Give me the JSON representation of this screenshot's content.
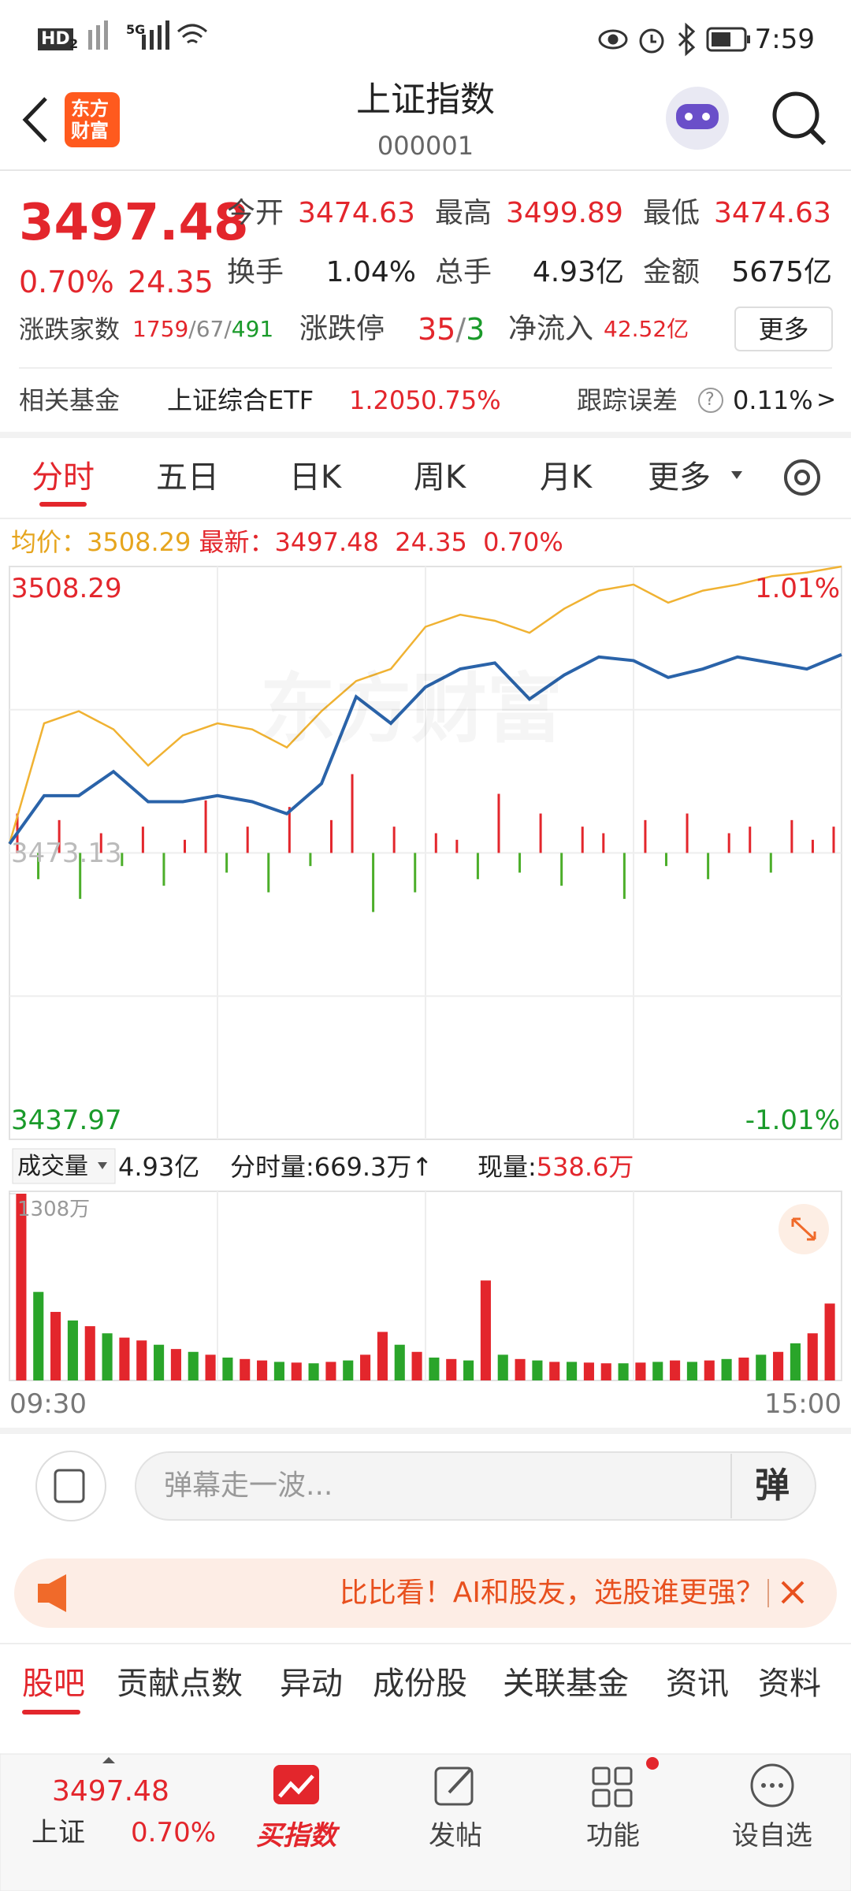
{
  "status_bar": {
    "hd": "HD",
    "hd_sub": "2",
    "network": "5G",
    "time": "7:59"
  },
  "header": {
    "title": "上证指数",
    "code": "000001",
    "logo": [
      "东方",
      "财富"
    ]
  },
  "quote": {
    "price": "3497.48",
    "change_pct": "0.70%",
    "change": "24.35",
    "row1": [
      {
        "label": "今开",
        "value": "3474.63"
      },
      {
        "label": "最高",
        "value": "3499.89"
      },
      {
        "label": "最低",
        "value": "3474.63"
      }
    ],
    "row2": [
      {
        "label": "换手",
        "value": "1.04%"
      },
      {
        "label": "总手",
        "value": "4.93亿"
      },
      {
        "label": "金额",
        "value": "5675亿"
      }
    ],
    "breadth_label": "涨跌家数",
    "advance": "1759",
    "flat": "67",
    "decline": "491",
    "sep": "/",
    "limit_label": "涨跌停",
    "limit_up": "35",
    "limit_down": "3",
    "inflow_label": "净流入",
    "inflow": "42.52亿",
    "more": "更多"
  },
  "fund": {
    "label": "相关基金",
    "name": "上证综合ETF",
    "price": "1.205",
    "pct": "0.75%",
    "tracking_label": "跟踪误差",
    "help": "?",
    "tracking": "0.11%",
    "arrow": ">"
  },
  "tabs": [
    "分时",
    "五日",
    "日K",
    "周K",
    "月K",
    "更多"
  ],
  "info": {
    "avg_label": "均价：",
    "avg": "3508.29",
    "last_label": "最新：",
    "last": "3497.48",
    "change": "24.35",
    "pct": "0.70%"
  },
  "chart": {
    "watermark": "东方财富",
    "ylim": [
      3437.97,
      3508.29
    ],
    "yticks": [
      3437.97,
      3473.13,
      3508.29
    ],
    "y2lim": [
      -1.01,
      1.01
    ],
    "y2ticks": [
      {
        "value": -1.01,
        "label": "-1.01%"
      },
      {
        "value": 1.01,
        "label": "1.01%"
      }
    ],
    "price": {
      "color": "#2a63a9",
      "values": [
        3474.24,
        3480.16,
        3480.16,
        3483.12,
        3479.42,
        3479.42,
        3480.16,
        3479.42,
        3477.94,
        3481.64,
        3492.3,
        3489.04,
        3493.49,
        3495.71,
        3496.45,
        3492.01,
        3494.97,
        3497.19,
        3496.74,
        3494.67,
        3495.71,
        3497.19,
        3496.45,
        3495.71,
        3497.48
      ]
    },
    "average": {
      "color": "#f0b232",
      "values": [
        3474.24,
        3489.04,
        3490.53,
        3488.3,
        3483.86,
        3487.56,
        3489.04,
        3488.3,
        3486.08,
        3490.53,
        3494.23,
        3495.71,
        3500.89,
        3502.37,
        3501.63,
        3500.15,
        3503.11,
        3505.33,
        3506.07,
        3503.85,
        3505.33,
        3506.07,
        3507.11,
        3507.55,
        3508.29
      ]
    },
    "breadth": [
      30,
      -20,
      25,
      -35,
      15,
      -10,
      20,
      -25,
      10,
      40,
      -15,
      20,
      -30,
      35,
      -10,
      25,
      60,
      -45,
      20,
      -30,
      15,
      10,
      -20,
      45,
      -15,
      30,
      -25,
      20,
      15,
      -35,
      25,
      -10,
      30,
      -20,
      15,
      20,
      -15,
      25,
      10,
      20
    ]
  },
  "volume_header": {
    "selector": "成交量",
    "total": "4.93亿",
    "seg_label": "分时量:",
    "seg": "669.3万",
    "arrow": "↑",
    "now_label": "现量:",
    "now": "538.6万"
  },
  "volume": {
    "ylim": [
      0,
      1308
    ],
    "yticks": [
      {
        "value": 1308,
        "label": "1308万"
      }
    ],
    "x_labels": [
      "09:30",
      "15:00"
    ],
    "values": [
      1308,
      620,
      480,
      420,
      380,
      330,
      300,
      280,
      250,
      220,
      200,
      180,
      160,
      150,
      140,
      130,
      125,
      120,
      130,
      140,
      180,
      340,
      250,
      200,
      160,
      150,
      140,
      700,
      180,
      150,
      140,
      130,
      130,
      125,
      120,
      120,
      125,
      130,
      140,
      130,
      140,
      150,
      160,
      180,
      200,
      260,
      330,
      538.6
    ],
    "up": [
      true,
      false,
      true,
      false,
      true,
      false,
      true,
      true,
      false,
      true,
      false,
      true,
      false,
      true,
      true,
      false,
      true,
      false,
      true,
      false,
      true,
      true,
      false,
      true,
      false,
      true,
      false,
      true,
      false,
      true,
      false,
      true,
      false,
      true,
      true,
      false,
      true,
      false,
      true,
      false,
      true,
      false,
      true,
      false,
      true,
      false,
      true,
      true
    ]
  },
  "comment": {
    "placeholder": "弹幕走一波...",
    "button": "弹"
  },
  "banner": {
    "text": "比比看！AI和股友，选股谁更强？"
  },
  "sub_tabs": [
    "股吧",
    "贡献点数",
    "异动",
    "成份股",
    "关联基金",
    "资讯",
    "资料"
  ],
  "nav": {
    "price": "3497.48",
    "name": "上证",
    "pct": "0.70%",
    "items": [
      "买指数",
      "发帖",
      "功能",
      "设自选"
    ]
  }
}
